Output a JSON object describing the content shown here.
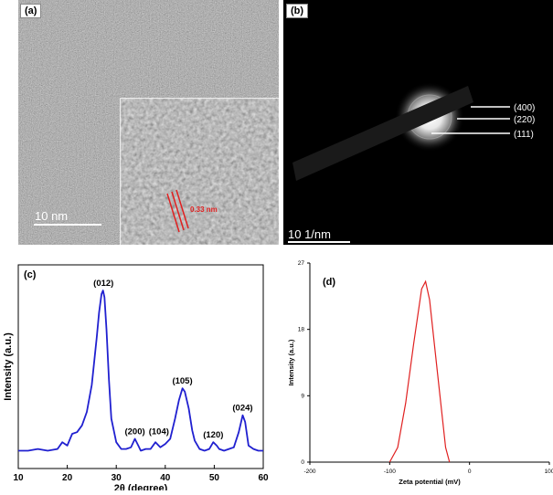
{
  "figure": {
    "panel_a": {
      "label": "(a)",
      "scalebar": "10 nm",
      "lattice_spacing": "0.33 nm"
    },
    "panel_b": {
      "label": "(b)",
      "scalebar": "10 1/nm",
      "rings": [
        "(400)",
        "(220)",
        "(111)"
      ]
    }
  },
  "chart_data": [
    {
      "type": "line",
      "panel": "(c)",
      "title": "",
      "xlabel": "2θ (degree)",
      "ylabel": "Intensity (a.u.)",
      "xlim": [
        10,
        60
      ],
      "xticks": [
        10,
        20,
        30,
        40,
        50,
        60
      ],
      "yticks_shown": false,
      "grid": false,
      "color": "#2020d0",
      "series": [
        {
          "x": [
            10,
            12,
            14,
            16,
            18,
            19,
            20,
            21,
            22,
            23,
            24,
            25,
            26,
            26.5,
            27,
            27.3,
            27.6,
            28,
            28.5,
            29,
            30,
            31,
            32,
            33,
            33.8,
            34.5,
            35,
            36,
            37,
            38,
            39,
            40,
            41,
            42,
            42.8,
            43.5,
            44,
            44.8,
            45.5,
            46,
            47,
            48,
            49,
            49.8,
            50.5,
            51,
            52,
            53,
            54,
            55,
            55.8,
            56.3,
            57,
            58,
            59,
            60
          ],
          "y": [
            3,
            3,
            4,
            3,
            4,
            8,
            6,
            13,
            14,
            18,
            26,
            42,
            70,
            85,
            96,
            98,
            94,
            75,
            45,
            22,
            8,
            4,
            4,
            5,
            10,
            6,
            3,
            4,
            4,
            8,
            5,
            7,
            10,
            22,
            33,
            40,
            38,
            28,
            15,
            9,
            4,
            3,
            4,
            8,
            6,
            4,
            3,
            4,
            5,
            14,
            24,
            20,
            6,
            4,
            3,
            3
          ]
        }
      ],
      "annotations": [
        {
          "x": 27.4,
          "y": 98,
          "text": "(012)"
        },
        {
          "x": 33.8,
          "y": 10,
          "text": "(200)"
        },
        {
          "x": 38.7,
          "y": 10,
          "text": "(104)"
        },
        {
          "x": 43.5,
          "y": 40,
          "text": "(105)"
        },
        {
          "x": 49.8,
          "y": 8,
          "text": "(120)"
        },
        {
          "x": 55.8,
          "y": 24,
          "text": "(024)"
        }
      ]
    },
    {
      "type": "line",
      "panel": "(d)",
      "title": "",
      "xlabel": "Zeta potential (mV)",
      "ylabel": "Intensity (a.u.)",
      "xlim": [
        -200,
        100
      ],
      "ylim": [
        0,
        27
      ],
      "xticks": [
        -200,
        -100,
        0,
        100
      ],
      "yticks": [
        0,
        9,
        18,
        27
      ],
      "grid": false,
      "color": "#e02020",
      "series": [
        {
          "x": [
            -100,
            -90,
            -80,
            -70,
            -60,
            -55,
            -50,
            -40,
            -30,
            -25
          ],
          "y": [
            0,
            2,
            8,
            16,
            23.5,
            24.5,
            22,
            12,
            2,
            0
          ]
        }
      ]
    }
  ]
}
